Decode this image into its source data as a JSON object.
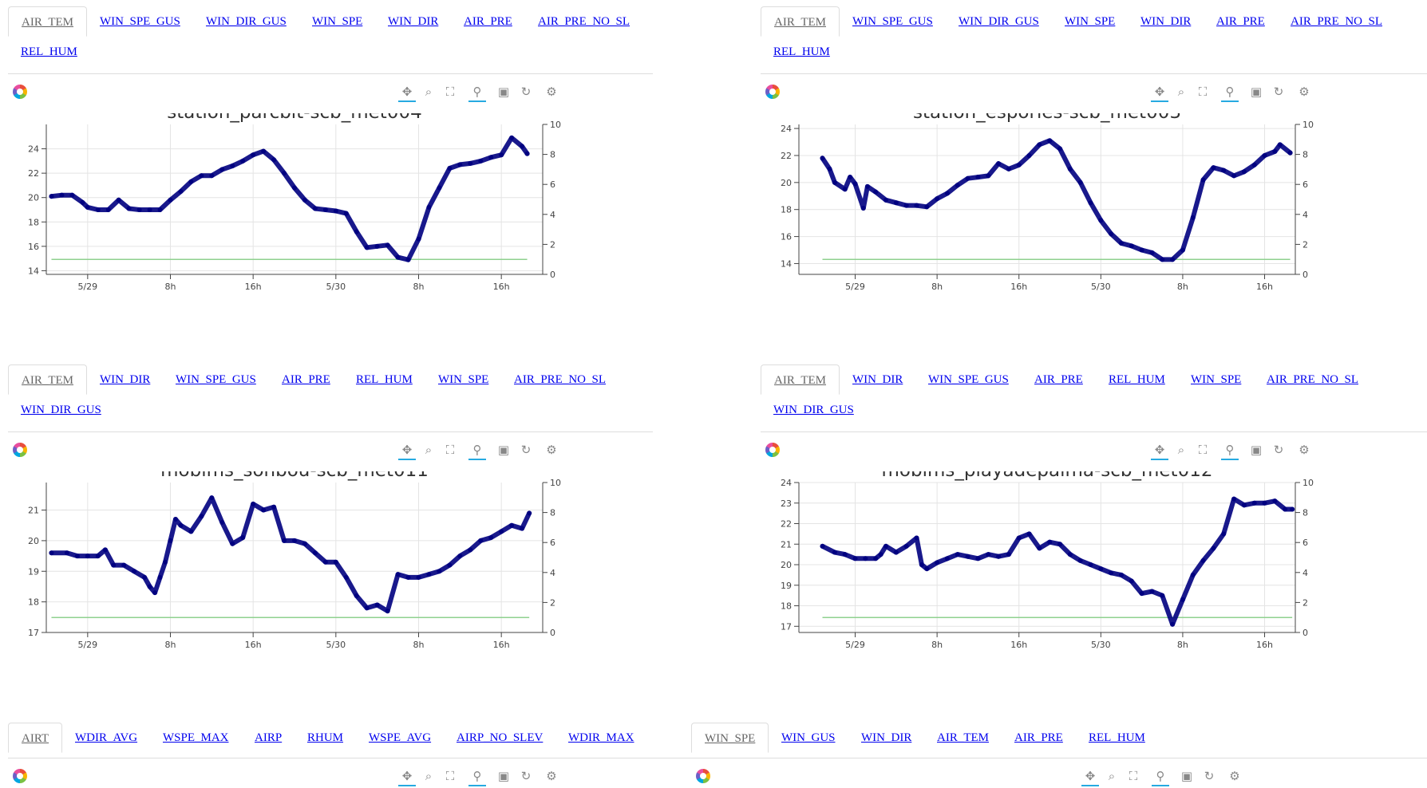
{
  "panels": [
    {
      "tabs": [
        "AIR_TEM",
        "WIN_SPE_GUS",
        "WIN_DIR_GUS",
        "WIN_SPE",
        "WIN_DIR",
        "AIR_PRE",
        "AIR_PRE_NO_SL",
        "REL_HUM"
      ],
      "active_tab": 0
    },
    {
      "tabs": [
        "AIR_TEM",
        "WIN_SPE_GUS",
        "WIN_DIR_GUS",
        "WIN_SPE",
        "WIN_DIR",
        "AIR_PRE",
        "AIR_PRE_NO_SL",
        "REL_HUM"
      ],
      "active_tab": 0
    },
    {
      "tabs": [
        "AIR_TEM",
        "WIN_DIR",
        "WIN_SPE_GUS",
        "AIR_PRE",
        "REL_HUM",
        "WIN_SPE",
        "AIR_PRE_NO_SL",
        "WIN_DIR_GUS"
      ],
      "active_tab": 0
    },
    {
      "tabs": [
        "AIR_TEM",
        "WIN_DIR",
        "WIN_SPE_GUS",
        "AIR_PRE",
        "REL_HUM",
        "WIN_SPE",
        "AIR_PRE_NO_SL",
        "WIN_DIR_GUS"
      ],
      "active_tab": 0
    }
  ],
  "bottom_tabs_left": {
    "tabs": [
      "AIRT",
      "WDIR_AVG",
      "WSPE_MAX",
      "AIRP",
      "RHUM",
      "WSPE_AVG",
      "AIRP_NO_SLEV",
      "WDIR_MAX"
    ],
    "active_tab": 0
  },
  "bottom_tabs_right": {
    "tabs": [
      "WIN_SPE",
      "WIN_GUS",
      "WIN_DIR",
      "AIR_TEM",
      "AIR_PRE",
      "REL_HUM"
    ],
    "active_tab": 0
  },
  "toolbar": {
    "tools": [
      {
        "icon": "pan-icon",
        "glyph": "✥"
      },
      {
        "icon": "box-zoom-icon",
        "glyph": "⌕"
      },
      {
        "icon": "box-select-icon",
        "glyph": "⛶"
      },
      {
        "icon": "wheel-zoom-icon",
        "glyph": "⚲"
      },
      {
        "icon": "save-icon",
        "glyph": "▣"
      },
      {
        "icon": "reset-icon",
        "glyph": "↻"
      },
      {
        "icon": "hover-icon",
        "glyph": "⚙"
      }
    ]
  },
  "colors": {
    "series": "#000080",
    "secondary": "#8fd18f",
    "grid": "#e4e4e4",
    "axis": "#444444"
  },
  "chart_data": [
    {
      "type": "line",
      "title": "station_parcbit-scb_met004",
      "x_ticks": [
        "5/29",
        "8h",
        "16h",
        "5/30",
        "8h",
        "16h"
      ],
      "x_tick_hours": [
        0,
        8,
        16,
        24,
        32,
        40
      ],
      "xlim": [
        -4,
        44
      ],
      "ylim": [
        13.7,
        26
      ],
      "y_ticks": [
        14,
        16,
        18,
        20,
        22,
        24
      ],
      "y2lim": [
        0,
        10
      ],
      "y2_ticks": [
        0,
        2,
        4,
        6,
        8,
        10
      ],
      "secondary_value": 1,
      "series": [
        {
          "name": "AIR_TEM",
          "x": [
            -3.5,
            -2.5,
            -1.5,
            -0.5,
            0,
            1,
            2,
            3,
            4,
            5,
            6,
            7,
            8,
            9,
            10,
            11,
            12,
            13,
            14,
            15,
            16,
            17,
            18,
            19,
            20,
            21,
            22,
            23,
            24,
            25,
            26,
            27,
            28,
            29,
            30,
            31,
            32,
            33,
            34,
            35,
            36,
            37,
            38,
            39,
            40,
            41,
            42,
            42.5
          ],
          "y": [
            20.1,
            20.2,
            20.2,
            19.6,
            19.2,
            19.0,
            19.0,
            19.8,
            19.1,
            19.0,
            19.0,
            19.0,
            19.8,
            20.5,
            21.3,
            21.8,
            21.8,
            22.3,
            22.6,
            23.0,
            23.5,
            23.8,
            23.1,
            22.0,
            20.8,
            19.8,
            19.1,
            19.0,
            18.9,
            18.7,
            17.2,
            15.9,
            16.0,
            16.1,
            15.1,
            14.9,
            16.6,
            19.2,
            20.8,
            22.4,
            22.7,
            22.8,
            23.0,
            23.3,
            23.5,
            24.9,
            24.2,
            23.6
          ]
        }
      ]
    },
    {
      "type": "line",
      "title": "station_esporles-scb_met003",
      "x_ticks": [
        "5/29",
        "8h",
        "16h",
        "5/30",
        "8h",
        "16h"
      ],
      "x_tick_hours": [
        0,
        8,
        16,
        24,
        32,
        40
      ],
      "xlim": [
        -5.5,
        43
      ],
      "ylim": [
        13.2,
        24.3
      ],
      "y_ticks": [
        14,
        16,
        18,
        20,
        22,
        24
      ],
      "y2lim": [
        0,
        10
      ],
      "y2_ticks": [
        0,
        2,
        4,
        6,
        8,
        10
      ],
      "secondary_value": 1,
      "series": [
        {
          "name": "AIR_TEM",
          "x": [
            -3.2,
            -2.5,
            -2,
            -1,
            -0.5,
            0,
            0.8,
            1.2,
            2,
            3,
            4,
            5,
            6,
            7,
            8,
            9,
            10,
            11,
            12,
            13,
            14,
            15,
            16,
            17,
            18,
            19,
            20,
            21,
            22,
            23,
            24,
            25,
            26,
            27,
            28,
            29,
            30,
            31,
            32,
            33,
            34,
            35,
            36,
            37,
            38,
            39,
            40,
            41,
            41.5,
            42.5
          ],
          "y": [
            21.8,
            21.0,
            20.0,
            19.5,
            20.4,
            19.9,
            18.1,
            19.7,
            19.3,
            18.7,
            18.5,
            18.3,
            18.3,
            18.2,
            18.8,
            19.2,
            19.8,
            20.3,
            20.4,
            20.5,
            21.4,
            21.0,
            21.3,
            22.0,
            22.8,
            23.1,
            22.5,
            21.0,
            20.0,
            18.5,
            17.2,
            16.2,
            15.5,
            15.3,
            15.0,
            14.8,
            14.3,
            14.3,
            15.0,
            17.4,
            20.2,
            21.1,
            20.9,
            20.5,
            20.8,
            21.3,
            22.0,
            22.3,
            22.8,
            22.2
          ]
        }
      ]
    },
    {
      "type": "line",
      "title": "mobims_sonbou-scb_met011",
      "x_ticks": [
        "5/29",
        "8h",
        "16h",
        "5/30",
        "8h",
        "16h"
      ],
      "x_tick_hours": [
        0,
        8,
        16,
        24,
        32,
        40
      ],
      "xlim": [
        -4,
        44
      ],
      "ylim": [
        17,
        21.9
      ],
      "y_ticks": [
        17,
        18,
        19,
        20,
        21
      ],
      "y2lim": [
        0,
        10
      ],
      "y2_ticks": [
        0,
        2,
        4,
        6,
        8,
        10
      ],
      "secondary_value": 1,
      "series": [
        {
          "name": "AIR_TEM",
          "x": [
            -3.5,
            -2,
            -1,
            0,
            1,
            1.7,
            2.5,
            3.5,
            4.5,
            5.5,
            6,
            6.5,
            7,
            7.5,
            8,
            8.5,
            9,
            10,
            11,
            12,
            13,
            14,
            15,
            16,
            17,
            18,
            19,
            20,
            21,
            22,
            23,
            24,
            25,
            26,
            27,
            28,
            29,
            30,
            31,
            32,
            33,
            34,
            35,
            36,
            37,
            38,
            39,
            40,
            41,
            42,
            42.7
          ],
          "y": [
            19.6,
            19.6,
            19.5,
            19.5,
            19.5,
            19.7,
            19.2,
            19.2,
            19.0,
            18.8,
            18.5,
            18.3,
            18.8,
            19.3,
            20.0,
            20.7,
            20.5,
            20.3,
            20.8,
            21.4,
            20.6,
            19.9,
            20.1,
            21.2,
            21.0,
            21.1,
            20.0,
            20.0,
            19.9,
            19.6,
            19.3,
            19.3,
            18.8,
            18.2,
            17.8,
            17.9,
            17.7,
            18.9,
            18.8,
            18.8,
            18.9,
            19.0,
            19.2,
            19.5,
            19.7,
            20.0,
            20.1,
            20.3,
            20.5,
            20.4,
            20.9
          ]
        }
      ]
    },
    {
      "type": "line",
      "title": "mobims_playadepalma-scb_met012",
      "x_ticks": [
        "5/29",
        "8h",
        "16h",
        "5/30",
        "8h",
        "16h"
      ],
      "x_tick_hours": [
        0,
        8,
        16,
        24,
        32,
        40
      ],
      "xlim": [
        -5.5,
        43
      ],
      "ylim": [
        16.7,
        24
      ],
      "y_ticks": [
        17,
        18,
        19,
        20,
        21,
        22,
        23,
        24
      ],
      "y2lim": [
        0,
        10
      ],
      "y2_ticks": [
        0,
        2,
        4,
        6,
        8,
        10
      ],
      "secondary_value": 1,
      "series": [
        {
          "name": "AIR_TEM",
          "x": [
            -3.2,
            -2,
            -1,
            0,
            1,
            2,
            2.5,
            3,
            4,
            5,
            6,
            6.5,
            7,
            8,
            9,
            10,
            11,
            12,
            13,
            14,
            15,
            16,
            17,
            18,
            19,
            20,
            21,
            22,
            23,
            24,
            25,
            26,
            27,
            28,
            29,
            30,
            31,
            32,
            33,
            34,
            35,
            36,
            37,
            38,
            39,
            40,
            41,
            42,
            42.7
          ],
          "y": [
            20.9,
            20.6,
            20.5,
            20.3,
            20.3,
            20.3,
            20.5,
            20.9,
            20.6,
            20.9,
            21.3,
            20.0,
            19.8,
            20.1,
            20.3,
            20.5,
            20.4,
            20.3,
            20.5,
            20.4,
            20.5,
            21.3,
            21.5,
            20.8,
            21.1,
            21.0,
            20.5,
            20.2,
            20.0,
            19.8,
            19.6,
            19.5,
            19.2,
            18.6,
            18.7,
            18.5,
            17.1,
            18.3,
            19.5,
            20.2,
            20.8,
            21.5,
            23.2,
            22.9,
            23.0,
            23.0,
            23.1,
            22.7,
            22.7
          ]
        }
      ]
    }
  ]
}
